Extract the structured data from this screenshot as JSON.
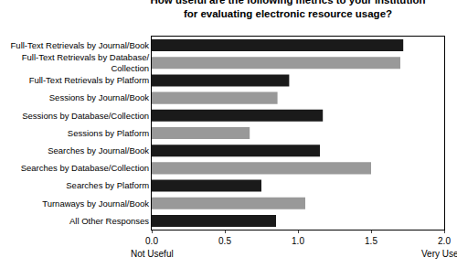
{
  "chart_data": {
    "type": "bar",
    "orientation": "horizontal",
    "title": "How useful are the following metrics to your institution for evaluating electronic resource usage?",
    "categories": [
      "Full-Text Retrievals by Journal/Book",
      "Full-Text Retrievals by Database/Collection",
      "Full-Text Retrievals by Platform",
      "Sessions by Journal/Book",
      "Sessions by Database/Collection",
      "Sessions by Platform",
      "Searches by Journal/Book",
      "Searches by Database/Collection",
      "Searches by Platform",
      "Turnaways by Journal/Book",
      "All Other Responses"
    ],
    "values": [
      1.72,
      1.7,
      0.94,
      0.86,
      1.17,
      0.67,
      1.15,
      1.5,
      0.75,
      1.05,
      0.85
    ],
    "colors": [
      "#1a1a1a",
      "#999999",
      "#1a1a1a",
      "#999999",
      "#1a1a1a",
      "#999999",
      "#1a1a1a",
      "#999999",
      "#1a1a1a",
      "#999999",
      "#1a1a1a"
    ],
    "xlim": [
      0,
      2
    ],
    "xticks": [
      {
        "value": 0,
        "label": "0.0"
      },
      {
        "value": 0.5,
        "label": "0.5"
      },
      {
        "value": 1,
        "label": "1.0"
      },
      {
        "value": 1.5,
        "label": "1.5"
      },
      {
        "value": 2,
        "label": "2.0"
      }
    ],
    "annotations": [
      {
        "text": "Not Useful",
        "x": 0
      },
      {
        "text": "Very Useful",
        "x": 2
      }
    ],
    "grid": false
  }
}
